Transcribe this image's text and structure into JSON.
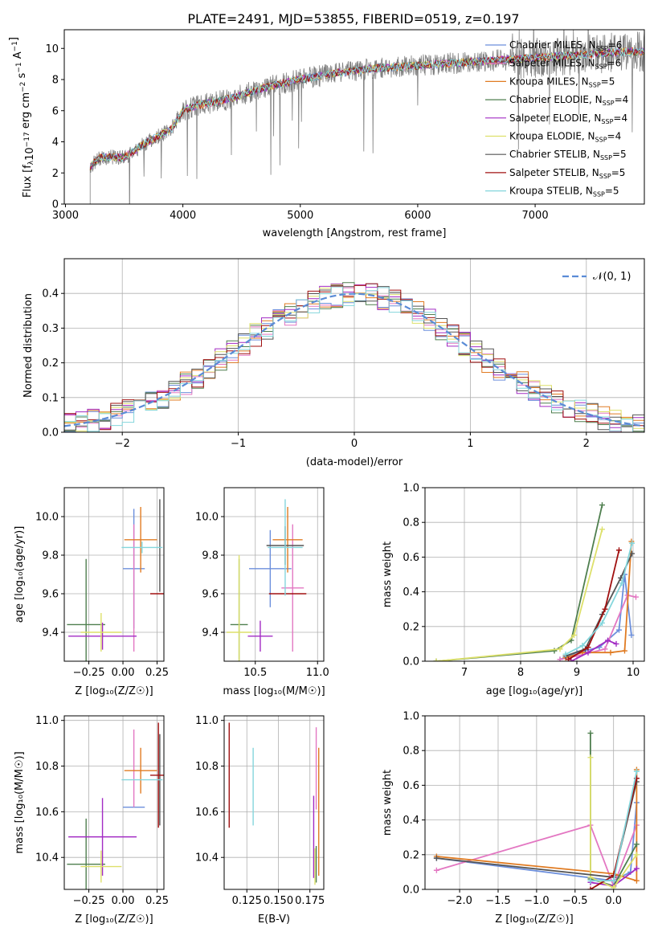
{
  "title": "PLATE=2491, MJD=53855, FIBERID=0519, z=0.197",
  "legend_models": [
    {
      "name": "Chabrier MILES, N",
      "sub": "SSP",
      "eq": "=6",
      "color": "#6c8fdc"
    },
    {
      "name": "Salpeter MILES, N",
      "sub": "SSP",
      "eq": "=6",
      "color": "#e377c2"
    },
    {
      "name": "Kroupa MILES, N",
      "sub": "SSP",
      "eq": "=5",
      "color": "#e07b22"
    },
    {
      "name": "Chabrier ELODIE, N",
      "sub": "SSP",
      "eq": "=4",
      "color": "#4f7f4f"
    },
    {
      "name": "Salpeter ELODIE, N",
      "sub": "SSP",
      "eq": "=4",
      "color": "#a22bc4"
    },
    {
      "name": "Kroupa ELODIE, N",
      "sub": "SSP",
      "eq": "=4",
      "color": "#dde06a"
    },
    {
      "name": "Chabrier STELIB, N",
      "sub": "SSP",
      "eq": "=5",
      "color": "#555555"
    },
    {
      "name": "Salpeter STELIB, N",
      "sub": "SSP",
      "eq": "=5",
      "color": "#a01010"
    },
    {
      "name": "Kroupa STELIB, N",
      "sub": "SSP",
      "eq": "=5",
      "color": "#84d6dc"
    }
  ],
  "chart_data": [
    {
      "id": "spectrum",
      "type": "line",
      "xlabel": "wavelength [Angstrom, rest frame]",
      "ylabel_main": "Flux [f",
      "ylabel_sub": "λ",
      "ylabel_rest": "10",
      "ylabel_exp1": "−17",
      "ylabel_mid": " erg cm",
      "ylabel_exp2": "−2",
      "ylabel_s": " s",
      "ylabel_exp3": "−1",
      "ylabel_A": " A",
      "ylabel_exp4": "−1",
      "ylabel_end": "]",
      "xlim": [
        2990,
        7930
      ],
      "ylim": [
        0,
        11.2
      ],
      "xticks": [
        3000,
        4000,
        5000,
        6000,
        7000
      ],
      "yticks": [
        0,
        2,
        4,
        6,
        8,
        10
      ],
      "data_color": "#808080",
      "continuum": {
        "x": [
          3210,
          3300,
          3500,
          3700,
          3900,
          4000,
          4100,
          4300,
          4500,
          4700,
          5000,
          5300,
          5600,
          6000,
          6400,
          6800,
          7200,
          7400,
          7800
        ],
        "y": [
          2.4,
          3.0,
          3.0,
          4.0,
          4.8,
          6.0,
          6.3,
          6.6,
          7.0,
          7.5,
          8.0,
          8.4,
          8.7,
          8.9,
          9.1,
          9.3,
          9.5,
          9.6,
          9.8
        ]
      }
    },
    {
      "id": "residual_hist",
      "type": "bar",
      "xlabel": "(data-model)/error",
      "ylabel": "Normed distribution",
      "xlim": [
        -2.5,
        2.5
      ],
      "ylim": [
        0,
        0.5
      ],
      "xticks": [
        -2,
        -1,
        0,
        1,
        2
      ],
      "yticks": [
        0.0,
        0.1,
        0.2,
        0.3,
        0.4
      ],
      "curve_label": "𝒩(0, 1)",
      "curve_color": "#5a8bd6",
      "bin_width": 0.1
    },
    {
      "id": "age_vs_Z",
      "type": "scatter",
      "xlabel": "Z [log₁₀(Z/Z☉)]",
      "ylabel": "age  [log₁₀(age/yr)]",
      "xlim": [
        -0.43,
        0.3
      ],
      "ylim": [
        9.25,
        10.15
      ],
      "xticks": [
        -0.25,
        0.0,
        0.25
      ],
      "yticks": [
        9.4,
        9.6,
        9.8,
        10.0
      ],
      "points": [
        {
          "c": "#6c8fdc",
          "x": 0.08,
          "xe": 0.08,
          "y": 9.73,
          "ye": 0.31
        },
        {
          "c": "#e377c2",
          "x": 0.08,
          "xe": 0.0,
          "y": 9.63,
          "ye": 0.33
        },
        {
          "c": "#e07b22",
          "x": 0.13,
          "xe": 0.12,
          "y": 9.88,
          "ye": 0.17
        },
        {
          "c": "#4f7f4f",
          "x": -0.27,
          "xe": 0.14,
          "y": 9.44,
          "ye": 0.34
        },
        {
          "c": "#a22bc4",
          "x": -0.15,
          "xe": 0.25,
          "y": 9.38,
          "ye": 0.07
        },
        {
          "c": "#dde06a",
          "x": -0.16,
          "xe": 0.15,
          "y": 9.4,
          "ye": 0.1
        },
        {
          "c": "#555555",
          "x": 0.27,
          "xe": 0.0,
          "y": 9.85,
          "ye": 0.24
        },
        {
          "c": "#a01010",
          "x": 0.26,
          "xe": 0.06,
          "y": 9.6,
          "ye": 0.0
        },
        {
          "c": "#84d6dc",
          "x": 0.14,
          "xe": 0.15,
          "y": 9.84,
          "ye": 0.03
        }
      ]
    },
    {
      "id": "age_vs_mass",
      "type": "scatter",
      "xlabel": "mass [log₁₀(M/M☉)]",
      "ylabel": "",
      "xlim": [
        10.25,
        11.05
      ],
      "ylim": [
        9.25,
        10.15
      ],
      "xticks": [
        10.5,
        11.0
      ],
      "yticks": [
        9.4,
        9.6,
        9.8,
        10.0
      ],
      "points": [
        {
          "c": "#6c8fdc",
          "x": 10.62,
          "xe": 0.17,
          "y": 9.73,
          "ye": 0.2
        },
        {
          "c": "#e377c2",
          "x": 10.8,
          "xe": 0.09,
          "y": 9.63,
          "ye": 0.33
        },
        {
          "c": "#e07b22",
          "x": 10.76,
          "xe": 0.12,
          "y": 9.88,
          "ye": 0.17
        },
        {
          "c": "#4f7f4f",
          "x": 10.37,
          "xe": 0.07,
          "y": 9.44,
          "ye": 0.34
        },
        {
          "c": "#a22bc4",
          "x": 10.54,
          "xe": 0.1,
          "y": 9.38,
          "ye": 0.08
        },
        {
          "c": "#dde06a",
          "x": 10.37,
          "xe": 0.1,
          "y": 9.4,
          "ye": 0.4
        },
        {
          "c": "#555555",
          "x": 10.74,
          "xe": 0.15,
          "y": 9.85,
          "ye": 0.1
        },
        {
          "c": "#a01010",
          "x": 10.76,
          "xe": 0.15,
          "y": 9.6,
          "ye": 0.0
        },
        {
          "c": "#84d6dc",
          "x": 10.74,
          "xe": 0.14,
          "y": 9.84,
          "ye": 0.25
        }
      ]
    },
    {
      "id": "weight_vs_age",
      "type": "line",
      "xlabel": "age  [log₁₀(age/yr)]",
      "ylabel": "mass weight",
      "xlim": [
        6.3,
        10.2
      ],
      "ylim": [
        0,
        1.0
      ],
      "xticks": [
        7,
        8,
        9,
        10
      ],
      "yticks": [
        0.0,
        0.2,
        0.4,
        0.6,
        0.8,
        1.0
      ],
      "series": [
        {
          "c": "#6c8fdc",
          "x": [
            8.7,
            9.0,
            9.4,
            9.75,
            9.85,
            9.97
          ],
          "y": [
            0.01,
            0.05,
            0.08,
            0.18,
            0.5,
            0.15
          ]
        },
        {
          "c": "#e377c2",
          "x": [
            8.7,
            9.0,
            9.5,
            9.9,
            10.05
          ],
          "y": [
            0.01,
            0.03,
            0.07,
            0.38,
            0.37
          ]
        },
        {
          "c": "#e07b22",
          "x": [
            8.8,
            9.1,
            9.6,
            9.85,
            9.97
          ],
          "y": [
            0.02,
            0.05,
            0.05,
            0.06,
            0.69
          ]
        },
        {
          "c": "#4f7f4f",
          "x": [
            6.5,
            8.6,
            8.9,
            9.45
          ],
          "y": [
            0.0,
            0.06,
            0.12,
            0.9
          ]
        },
        {
          "c": "#a22bc4",
          "x": [
            8.9,
            9.2,
            9.55,
            9.7
          ],
          "y": [
            0.0,
            0.05,
            0.12,
            0.1
          ]
        },
        {
          "c": "#dde06a",
          "x": [
            6.5,
            8.7,
            8.95,
            9.45
          ],
          "y": [
            0.0,
            0.07,
            0.15,
            0.76
          ]
        },
        {
          "c": "#555555",
          "x": [
            8.8,
            9.15,
            9.45,
            9.78,
            9.98
          ],
          "y": [
            0.03,
            0.07,
            0.27,
            0.48,
            0.62
          ]
        },
        {
          "c": "#a01010",
          "x": [
            8.85,
            9.2,
            9.5,
            9.75
          ],
          "y": [
            0.01,
            0.08,
            0.3,
            0.64
          ]
        },
        {
          "c": "#84d6dc",
          "x": [
            8.8,
            9.1,
            9.45,
            9.8,
            9.98
          ],
          "y": [
            0.04,
            0.09,
            0.22,
            0.45,
            0.68
          ]
        }
      ]
    },
    {
      "id": "mass_vs_Z",
      "type": "scatter",
      "xlabel": "Z [log₁₀(Z/Z☉)]",
      "ylabel": "mass [log₁₀(M/M☉)]",
      "xlim": [
        -0.43,
        0.3
      ],
      "ylim": [
        10.26,
        11.02
      ],
      "xticks": [
        -0.25,
        0.0,
        0.25
      ],
      "yticks": [
        10.4,
        10.6,
        10.8,
        11.0
      ],
      "points": [
        {
          "c": "#6c8fdc",
          "x": 0.08,
          "xe": 0.08,
          "y": 10.62,
          "ye": 0.0
        },
        {
          "c": "#e377c2",
          "x": 0.08,
          "xe": 0.0,
          "y": 10.79,
          "ye": 0.17
        },
        {
          "c": "#e07b22",
          "x": 0.13,
          "xe": 0.12,
          "y": 10.78,
          "ye": 0.1
        },
        {
          "c": "#4f7f4f",
          "x": -0.27,
          "xe": 0.14,
          "y": 10.37,
          "ye": 0.2
        },
        {
          "c": "#a22bc4",
          "x": -0.15,
          "xe": 0.25,
          "y": 10.49,
          "ye": 0.17
        },
        {
          "c": "#dde06a",
          "x": -0.16,
          "xe": 0.15,
          "y": 10.36,
          "ye": 0.07
        },
        {
          "c": "#555555",
          "x": 0.27,
          "xe": 0.0,
          "y": 10.74,
          "ye": 0.2
        },
        {
          "c": "#a01010",
          "x": 0.26,
          "xe": 0.06,
          "y": 10.76,
          "ye": 0.23
        },
        {
          "c": "#84d6dc",
          "x": 0.14,
          "xe": 0.15,
          "y": 10.74,
          "ye": 0.0
        }
      ]
    },
    {
      "id": "mass_vs_ebv",
      "type": "scatter",
      "xlabel": "E(B-V)",
      "ylabel": "",
      "xlim": [
        0.107,
        0.186
      ],
      "ylim": [
        10.26,
        11.02
      ],
      "xticks": [
        0.125,
        0.15,
        0.175
      ],
      "yticks": [
        10.4,
        10.6,
        10.8,
        11.0
      ],
      "points": [
        {
          "c": "#a01010",
          "x": 0.111,
          "y": 10.76,
          "ye": 0.23
        },
        {
          "c": "#84d6dc",
          "x": 0.13,
          "y": 10.71,
          "ye": 0.17
        },
        {
          "c": "#a22bc4",
          "x": 0.178,
          "y": 10.49,
          "ye": 0.18
        },
        {
          "c": "#dde06a",
          "x": 0.179,
          "y": 10.36,
          "ye": 0.08
        },
        {
          "c": "#4f7f4f",
          "x": 0.18,
          "y": 10.37,
          "ye": 0.08
        },
        {
          "c": "#e377c2",
          "x": 0.18,
          "y": 10.79,
          "ye": 0.18
        },
        {
          "c": "#e07b22",
          "x": 0.182,
          "y": 10.6,
          "ye": 0.28
        }
      ]
    },
    {
      "id": "weight_vs_Z",
      "type": "line",
      "xlabel": "Z [log₁₀(Z/Z☉)]",
      "ylabel": "mass weight",
      "xlim": [
        -2.45,
        0.4
      ],
      "ylim": [
        0,
        1.0
      ],
      "xticks": [
        -2.0,
        -1.5,
        -1.0,
        -0.5,
        0.0
      ],
      "yticks": [
        0.0,
        0.2,
        0.4,
        0.6,
        0.8,
        1.0
      ],
      "series": [
        {
          "c": "#6c8fdc",
          "x": [
            -2.3,
            0.0,
            0.22,
            0.3
          ],
          "y": [
            0.18,
            0.05,
            0.1,
            0.5
          ]
        },
        {
          "c": "#e377c2",
          "x": [
            -2.3,
            -0.3,
            0.0,
            0.3
          ],
          "y": [
            0.11,
            0.37,
            0.02,
            0.37
          ]
        },
        {
          "c": "#e07b22",
          "x": [
            -2.3,
            0.0,
            0.3,
            0.3
          ],
          "y": [
            0.19,
            0.09,
            0.05,
            0.69
          ]
        },
        {
          "c": "#4f7f4f",
          "x": [
            -0.3,
            -0.3,
            0.0,
            0.3
          ],
          "y": [
            0.9,
            0.06,
            0.02,
            0.26
          ]
        },
        {
          "c": "#a22bc4",
          "x": [
            -0.3,
            0.0,
            0.3
          ],
          "y": [
            0.04,
            0.02,
            0.12
          ]
        },
        {
          "c": "#dde06a",
          "x": [
            -0.3,
            -0.3,
            0.0,
            0.3
          ],
          "y": [
            0.76,
            0.07,
            0.01,
            0.2
          ]
        },
        {
          "c": "#555555",
          "x": [
            -2.3,
            0.0,
            0.3
          ],
          "y": [
            0.18,
            0.07,
            0.62
          ]
        },
        {
          "c": "#a01010",
          "x": [
            -0.3,
            0.0,
            0.3
          ],
          "y": [
            0.0,
            0.08,
            0.64
          ]
        },
        {
          "c": "#84d6dc",
          "x": [
            -0.3,
            0.0,
            0.3
          ],
          "y": [
            0.05,
            0.05,
            0.68
          ]
        }
      ]
    }
  ]
}
